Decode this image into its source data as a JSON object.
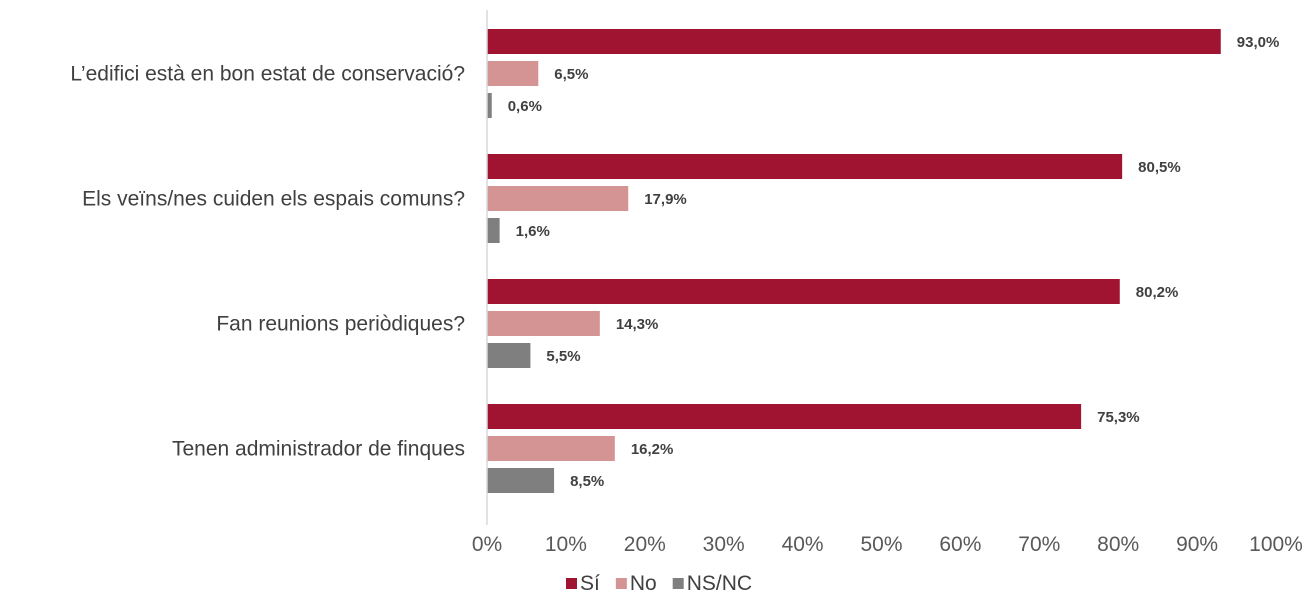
{
  "chart_data": {
    "type": "bar",
    "orientation": "horizontal",
    "categories": [
      "L’edifici està en bon estat de conservació?",
      "Els veïns/nes cuiden els espais comuns?",
      "Fan reunions periòdiques?",
      "Tenen administrador de finques"
    ],
    "series": [
      {
        "name": "Sí",
        "color": "#A01432",
        "values": [
          93.0,
          80.5,
          80.2,
          75.3
        ],
        "labels": [
          "93,0%",
          "80,5%",
          "80,2%",
          "75,3%"
        ]
      },
      {
        "name": "No",
        "color": "#D49494",
        "values": [
          6.5,
          17.9,
          14.3,
          16.2
        ],
        "labels": [
          "6,5%",
          "17,9%",
          "14,3%",
          "16,2%"
        ]
      },
      {
        "name": "NS/NC",
        "color": "#7F7F7F",
        "values": [
          0.6,
          1.6,
          5.5,
          8.5
        ],
        "labels": [
          "0,6%",
          "1,6%",
          "5,5%",
          "8,5%"
        ]
      }
    ],
    "xlim": [
      0,
      100
    ],
    "xticks": [
      "0%",
      "10%",
      "20%",
      "30%",
      "40%",
      "50%",
      "60%",
      "70%",
      "80%",
      "90%",
      "100%"
    ],
    "title": "",
    "xlabel": "",
    "ylabel": "",
    "grid": false,
    "legend_position": "bottom"
  }
}
